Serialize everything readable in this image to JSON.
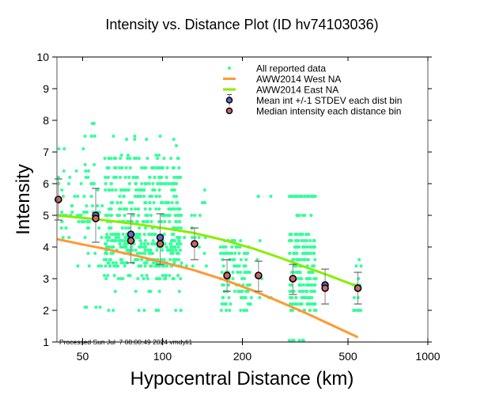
{
  "chart_data": {
    "type": "scatter",
    "title": "Intensity vs. Distance Plot (ID hv74103036)",
    "xlabel": "Hypocentral Distance (km)",
    "ylabel": "Intensity",
    "xscale": "log",
    "xlim": [
      40,
      1000
    ],
    "ylim": [
      1,
      10
    ],
    "xticks": [
      50,
      100,
      200,
      500,
      1000
    ],
    "xtick_labels": [
      "50",
      "100",
      "200",
      "500",
      "1000"
    ],
    "yticks": [
      1,
      2,
      3,
      4,
      5,
      6,
      7,
      8,
      9,
      10
    ],
    "ytick_labels": [
      "1",
      "2",
      "3",
      "4",
      "5",
      "6",
      "7",
      "8",
      "9",
      "10"
    ],
    "grid": false,
    "legend_position": "top-right",
    "processed_stamp": "Processed Sun Jul  7 08:00:49 2024 vmdyli1",
    "legend": [
      {
        "label": "All reported data",
        "kind": "dot",
        "color": "#33ff99"
      },
      {
        "label": "AWW2014 West NA",
        "kind": "line",
        "color": "#ff9933"
      },
      {
        "label": "AWW2014 East NA",
        "kind": "line",
        "color": "#88ee00"
      },
      {
        "label": "Mean int +/-1 STDEV each dist bin",
        "kind": "mean",
        "color": "#6666cc"
      },
      {
        "label": "Median intensity each distance bin",
        "kind": "median",
        "color": "#cc6666"
      }
    ],
    "series": [
      {
        "name": "AWW2014 West NA",
        "type": "line",
        "color": "#ff9933",
        "x": [
          40,
          50,
          60,
          80,
          100,
          130,
          170,
          220,
          280,
          350,
          430,
          545
        ],
        "y": [
          4.25,
          4.08,
          3.95,
          3.72,
          3.52,
          3.28,
          2.97,
          2.62,
          2.25,
          1.9,
          1.55,
          1.15
        ]
      },
      {
        "name": "AWW2014 East NA",
        "type": "line",
        "color": "#88ee00",
        "x": [
          40,
          50,
          60,
          80,
          100,
          130,
          170,
          220,
          280,
          350,
          430,
          545
        ],
        "y": [
          5.0,
          4.92,
          4.85,
          4.72,
          4.6,
          4.45,
          4.22,
          3.95,
          3.65,
          3.35,
          3.08,
          2.75
        ]
      },
      {
        "name": "Mean int +/-1 STDEV each dist bin",
        "type": "errorbar",
        "color": "#6666cc",
        "x": [
          40.5,
          56,
          76,
          98,
          132,
          175,
          230,
          310,
          410,
          545
        ],
        "y": [
          5.5,
          5.0,
          4.4,
          4.3,
          4.1,
          3.1,
          3.1,
          3.0,
          2.8,
          2.7
        ],
        "err_low": [
          4.85,
          4.15,
          3.5,
          3.45,
          3.6,
          2.6,
          2.6,
          2.5,
          2.2,
          2.2
        ],
        "err_high": [
          6.15,
          5.85,
          5.05,
          5.05,
          4.6,
          3.6,
          3.55,
          3.45,
          3.3,
          3.2
        ]
      },
      {
        "name": "Median intensity each distance bin",
        "type": "scatter",
        "color": "#cc6666",
        "x": [
          40.5,
          56,
          76,
          98,
          132,
          175,
          230,
          310,
          410,
          545
        ],
        "y": [
          5.5,
          4.9,
          4.2,
          4.1,
          4.1,
          3.1,
          3.1,
          3.0,
          2.7,
          2.7
        ]
      },
      {
        "name": "All reported data",
        "type": "scatter",
        "color": "#33ff99",
        "clusters": [
          {
            "xmin": 40,
            "xmax": 60,
            "ymin": 3.4,
            "ymax": 7.1,
            "levels": [
              3.4,
              4.3,
              4.6,
              4.8,
              5.0,
              5.1,
              5.3,
              5.6,
              5.8,
              6.0,
              6.2,
              6.4,
              7.1
            ],
            "count": 70
          },
          {
            "xmin": 48,
            "xmax": 60,
            "ymin": 2.1,
            "ymax": 7.9,
            "levels": [
              2.1,
              3.8,
              4.5,
              6.6,
              7.5,
              7.9
            ],
            "count": 14
          },
          {
            "xmin": 60,
            "xmax": 118,
            "ymin": 3.1,
            "ymax": 6.8,
            "levels": [
              3.1,
              3.4,
              3.5,
              3.6,
              3.8,
              3.9,
              4.0,
              4.1,
              4.2,
              4.3,
              4.4,
              4.6,
              4.8,
              5.0,
              5.2,
              5.4,
              5.6,
              5.8,
              6.0,
              6.2,
              6.5,
              6.8
            ],
            "count": 520
          },
          {
            "xmin": 60,
            "xmax": 118,
            "ymin": 2.0,
            "ymax": 3.0,
            "levels": [
              2.0,
              2.6,
              3.0
            ],
            "count": 30
          },
          {
            "xmin": 65,
            "xmax": 115,
            "ymin": 6.8,
            "ymax": 7.5,
            "levels": [
              6.9,
              7.2,
              7.4,
              7.5
            ],
            "count": 12
          },
          {
            "xmin": 115,
            "xmax": 150,
            "ymin": 3.4,
            "ymax": 5.8,
            "levels": [
              3.4,
              3.6,
              3.8,
              4.0,
              4.3,
              4.6,
              5.0,
              5.4,
              5.8
            ],
            "count": 18
          },
          {
            "xmin": 165,
            "xmax": 215,
            "ymin": 2.0,
            "ymax": 4.2,
            "levels": [
              2.0,
              2.2,
              2.4,
              2.6,
              2.8,
              3.0,
              3.2,
              3.4,
              3.6,
              3.8,
              4.0,
              4.2
            ],
            "count": 110
          },
          {
            "xmin": 215,
            "xmax": 260,
            "ymin": 2.4,
            "ymax": 5.6,
            "levels": [
              2.4,
              3.0,
              3.6,
              4.2,
              5.6
            ],
            "count": 10
          },
          {
            "xmin": 300,
            "xmax": 380,
            "ymin": 2.0,
            "ymax": 5.6,
            "levels": [
              2.0,
              2.2,
              2.4,
              2.6,
              2.8,
              3.0,
              3.2,
              3.4,
              3.6,
              3.8,
              4.0,
              4.2,
              4.4,
              5.0,
              5.6
            ],
            "count": 230
          },
          {
            "xmin": 300,
            "xmax": 360,
            "ymin": 1.0,
            "ymax": 1.1,
            "levels": [
              1.0
            ],
            "count": 8
          },
          {
            "xmin": 520,
            "xmax": 560,
            "ymin": 2.0,
            "ymax": 4.2,
            "levels": [
              2.0,
              2.4,
              2.8,
              3.0,
              3.4,
              3.6,
              4.2
            ],
            "count": 18
          }
        ]
      }
    ]
  }
}
